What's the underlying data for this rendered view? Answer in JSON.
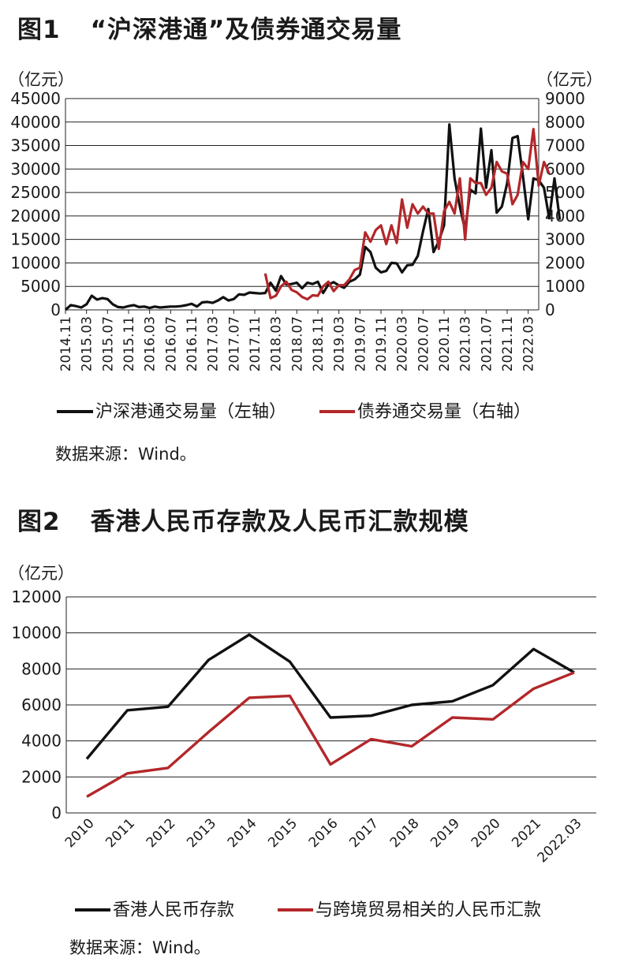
{
  "figures": [
    {
      "num": "图1",
      "title": "“沪深港通”及债券通交易量",
      "source": "数据来源：Wind。",
      "chart_data": {
        "type": "line",
        "left_unit": "（亿元）",
        "right_unit": "（亿元）",
        "y_left": {
          "ylim": [
            0,
            45000
          ],
          "ticks": [
            "0",
            "5000",
            "10000",
            "15000",
            "20000",
            "25000",
            "30000",
            "35000",
            "40000",
            "45000"
          ]
        },
        "y_right": {
          "ylim": [
            0,
            9000
          ],
          "ticks": [
            "0",
            "1000",
            "2000",
            "3000",
            "4000",
            "5000",
            "6000",
            "7000",
            "8000",
            "9000"
          ]
        },
        "grid": true,
        "legend_position": "bottom",
        "x_tick_labels": [
          "2014.11",
          "2015.03",
          "2015.07",
          "2015.11",
          "2016.03",
          "2016.07",
          "2016.11",
          "2017.03",
          "2017.07",
          "2017.11",
          "2018.03",
          "2018.07",
          "2018.11",
          "2019.03",
          "2019.07",
          "2019.11",
          "2020.03",
          "2020.07",
          "2020.11",
          "2021.03",
          "2021.07",
          "2021.11",
          "2022.03"
        ],
        "series": [
          {
            "name": "沪深港通交易量（左轴）",
            "axis": "left",
            "color": "#111111",
            "start": "2014.11",
            "values": [
              0,
              1000,
              800,
              500,
              1200,
              3000,
              2200,
              2500,
              2300,
              1200,
              600,
              500,
              800,
              1000,
              600,
              700,
              400,
              700,
              500,
              600,
              700,
              700,
              800,
              1000,
              1300,
              700,
              1600,
              1700,
              1500,
              2000,
              2700,
              2000,
              2300,
              3300,
              3200,
              3700,
              3600,
              3500,
              3600,
              5800,
              4100,
              7200,
              5400,
              5500,
              5800,
              4600,
              5800,
              5500,
              6000,
              3600,
              5400,
              5900,
              5200,
              4700,
              6000,
              6500,
              7500,
              13400,
              12300,
              9000,
              8000,
              8300,
              10000,
              9900,
              8000,
              9500,
              9600,
              11500,
              16700,
              21500,
              12300,
              14600,
              18000,
              39500,
              28000,
              22000,
              17000,
              25600,
              24800,
              38600,
              26000,
              34000,
              20700,
              22000,
              27000,
              36600,
              37000,
              28500,
              19300,
              28000,
              27600,
              26000,
              19500,
              28000,
              19200
            ]
          },
          {
            "name": "债券通交易量（右轴）",
            "axis": "right",
            "color": "#b3272a",
            "start": "2018.01",
            "values": [
              1550,
              500,
              600,
              1000,
              1200,
              850,
              750,
              550,
              450,
              620,
              600,
              1000,
              1200,
              800,
              1050,
              1050,
              1300,
              1700,
              1800,
              3300,
              2900,
              3400,
              3600,
              2800,
              3600,
              2850,
              4700,
              3500,
              4500,
              4100,
              4400,
              4100,
              4100,
              2600,
              4200,
              4600,
              4100,
              5600,
              3000,
              5600,
              5400,
              5400,
              4900,
              5200,
              6300,
              5900,
              5800,
              4500,
              4900,
              6300,
              6000,
              7700,
              5300,
              6300,
              5800
            ]
          }
        ]
      }
    },
    {
      "num": "图2",
      "title": "香港人民币存款及人民币汇款规模",
      "source": "数据来源：Wind。",
      "chart_data": {
        "type": "line",
        "y_unit": "（亿元）",
        "ylim": [
          0,
          12000
        ],
        "y_ticks": [
          "0",
          "2000",
          "4000",
          "6000",
          "8000",
          "10000",
          "12000"
        ],
        "grid": true,
        "legend_position": "bottom",
        "categories": [
          "2010",
          "2011",
          "2012",
          "2013",
          "2014",
          "2015",
          "2016",
          "2017",
          "2018",
          "2019",
          "2020",
          "2021",
          "2022.03"
        ],
        "series": [
          {
            "name": "香港人民币存款",
            "color": "#111111",
            "values": [
              3000,
              5700,
              5900,
              8500,
              9900,
              8400,
              5300,
              5400,
              6000,
              6200,
              7100,
              9100,
              7800
            ]
          },
          {
            "name": "与跨境贸易相关的人民币汇款",
            "color": "#b3272a",
            "values": [
              900,
              2200,
              2500,
              4500,
              6400,
              6500,
              2700,
              4100,
              3700,
              5300,
              5200,
              6900,
              7800
            ]
          }
        ]
      }
    }
  ]
}
